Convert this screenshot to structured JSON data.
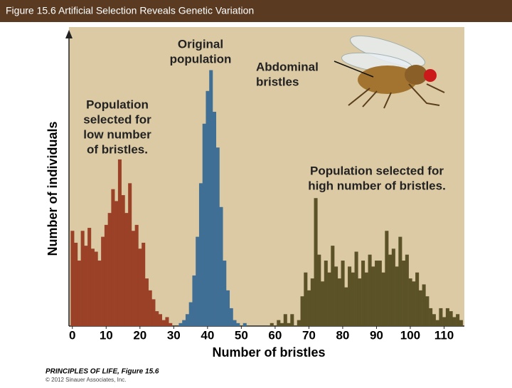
{
  "header": {
    "title": "Figure 15.6  Artificial Selection Reveals Genetic Variation"
  },
  "chart_data": {
    "type": "bar",
    "x_label": "Number of bristles",
    "y_label": "Number of individuals",
    "xlim": [
      -1,
      116
    ],
    "xticks": [
      0,
      10,
      20,
      30,
      40,
      50,
      60,
      70,
      80,
      90,
      100,
      110
    ],
    "ylim": [
      0,
      100
    ],
    "series": [
      {
        "color": "#9a4127",
        "x": [
          0,
          1,
          2,
          3,
          4,
          5,
          6,
          7,
          8,
          9,
          10,
          11,
          12,
          13,
          14,
          15,
          16,
          17,
          18,
          19,
          20,
          21,
          22,
          23,
          24,
          25,
          26,
          27,
          28,
          29
        ],
        "values": [
          32,
          28,
          22,
          32,
          27,
          33,
          26,
          25,
          22,
          30,
          34,
          38,
          46,
          42,
          56,
          44,
          38,
          48,
          32,
          34,
          26,
          28,
          16,
          12,
          9,
          5,
          4,
          2,
          3,
          1
        ]
      },
      {
        "color": "#406f95",
        "x": [
          32,
          33,
          34,
          35,
          36,
          37,
          38,
          39,
          40,
          41,
          42,
          43,
          44,
          45,
          46,
          47,
          48,
          49,
          51
        ],
        "values": [
          1,
          2,
          4,
          8,
          17,
          30,
          48,
          68,
          79,
          86,
          72,
          60,
          40,
          22,
          12,
          6,
          2,
          1,
          1
        ]
      },
      {
        "color": "#5b5227",
        "x": [
          59,
          60,
          61,
          62,
          63,
          64,
          65,
          66,
          67,
          68,
          69,
          70,
          71,
          72,
          73,
          74,
          75,
          76,
          77,
          78,
          79,
          80,
          81,
          82,
          83,
          84,
          85,
          86,
          87,
          88,
          89,
          90,
          91,
          92,
          93,
          94,
          95,
          96,
          97,
          98,
          99,
          100,
          101,
          102,
          103,
          104,
          105,
          106,
          107,
          108,
          109,
          110,
          111,
          112,
          113,
          114,
          115
        ],
        "values": [
          1,
          0,
          2,
          1,
          4,
          1,
          4,
          0,
          2,
          10,
          18,
          12,
          16,
          43,
          24,
          15,
          22,
          18,
          27,
          20,
          16,
          22,
          13,
          20,
          18,
          25,
          16,
          22,
          18,
          24,
          20,
          22,
          22,
          18,
          32,
          24,
          26,
          20,
          30,
          22,
          24,
          16,
          15,
          18,
          12,
          14,
          10,
          6,
          4,
          2,
          6,
          3,
          6,
          5,
          3,
          4,
          2
        ]
      }
    ],
    "annotations": [
      {
        "lines": [
          "Original",
          "population"
        ]
      },
      {
        "lines": [
          "Abdominal",
          "bristles"
        ]
      },
      {
        "lines": [
          "Population",
          "selected for",
          "low number",
          "of bristles."
        ]
      },
      {
        "lines": [
          "Population selected for",
          "high number of bristles."
        ]
      }
    ]
  },
  "footer": {
    "source": "PRINCIPLES OF LIFE, Figure 15.6",
    "copyright": "© 2012 Sinauer Associates, Inc."
  }
}
